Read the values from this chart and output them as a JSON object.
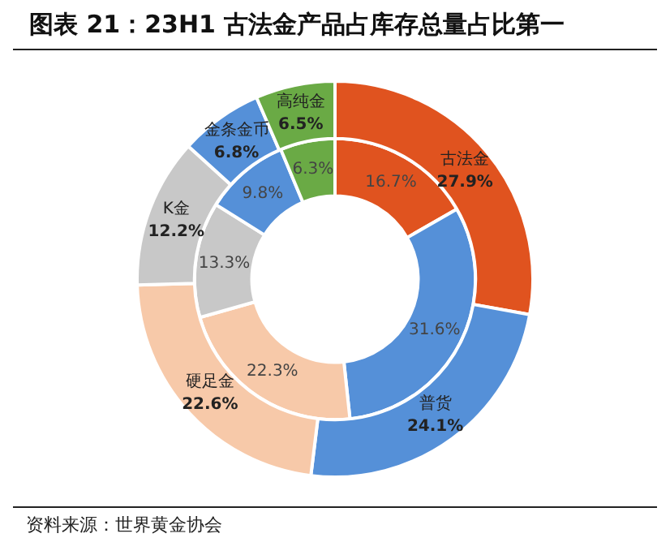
{
  "chart_data": {
    "type": "donut",
    "title": "图表 21：23H1 古法金产品占库存总量占比第一",
    "categories": [
      "古法金",
      "普货",
      "硬足金",
      "K金",
      "金条金币",
      "高纯金"
    ],
    "colors": [
      "#e0531f",
      "#5590d8",
      "#f7c9a9",
      "#c8c8c8",
      "#5590d8",
      "#6aaa45"
    ],
    "series": [
      {
        "values": [
          27.9,
          24.1,
          22.6,
          12.2,
          6.8,
          6.5
        ],
        "value_labels": [
          "27.9%",
          "24.1%",
          "22.6%",
          "12.2%",
          "6.8%",
          "6.5%"
        ]
      },
      {
        "values": [
          16.7,
          31.6,
          22.3,
          13.3,
          9.8,
          6.3
        ],
        "value_labels": [
          "16.7%",
          "31.6%",
          "22.3%",
          "13.3%",
          "9.8%",
          "6.3%"
        ]
      }
    ],
    "legend": false,
    "annotations": [
      "资料来源：世界黄金协会"
    ]
  }
}
